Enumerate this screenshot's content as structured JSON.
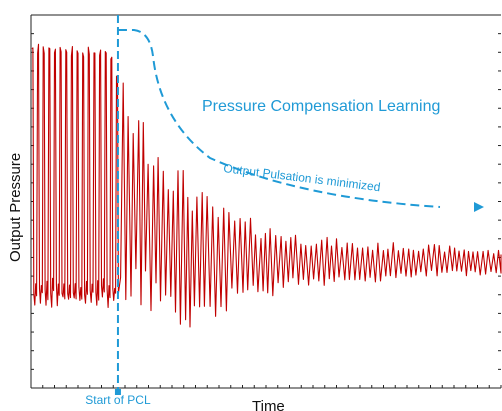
{
  "chart_data": {
    "type": "line",
    "title": "",
    "xlabel": "Time",
    "ylabel": "Output Pressure",
    "xlim": [
      0,
      100
    ],
    "ylim": [
      0,
      100
    ],
    "grid": false,
    "colors": {
      "signal": "#c00000",
      "annotation": "#1f9ad6",
      "axis": "#222222"
    },
    "pcl_start_x": 18.5,
    "series": [
      {
        "description_key": "output-pressure-signal",
        "envelope": [
          {
            "x": 0,
            "upper": 91,
            "lower": 23
          },
          {
            "x": 5,
            "upper": 91,
            "lower": 23
          },
          {
            "x": 10,
            "upper": 90,
            "lower": 23
          },
          {
            "x": 14,
            "upper": 90,
            "lower": 23
          },
          {
            "x": 17,
            "upper": 89,
            "lower": 23
          },
          {
            "x": 18.5,
            "upper": 83,
            "lower": 22
          },
          {
            "x": 21,
            "upper": 78,
            "lower": 22
          },
          {
            "x": 24,
            "upper": 72,
            "lower": 20
          },
          {
            "x": 27,
            "upper": 67,
            "lower": 16
          },
          {
            "x": 30,
            "upper": 62,
            "lower": 14
          },
          {
            "x": 33,
            "upper": 57,
            "lower": 15
          },
          {
            "x": 36,
            "upper": 53,
            "lower": 17
          },
          {
            "x": 40,
            "upper": 49,
            "lower": 20
          },
          {
            "x": 45,
            "upper": 46,
            "lower": 23
          },
          {
            "x": 50,
            "upper": 44,
            "lower": 24
          },
          {
            "x": 55,
            "upper": 42,
            "lower": 26
          },
          {
            "x": 60,
            "upper": 41,
            "lower": 27
          },
          {
            "x": 65,
            "upper": 40,
            "lower": 28
          },
          {
            "x": 70,
            "upper": 39,
            "lower": 28
          },
          {
            "x": 80,
            "upper": 39,
            "lower": 29
          },
          {
            "x": 90,
            "upper": 38,
            "lower": 30
          },
          {
            "x": 100,
            "upper": 37,
            "lower": 30
          }
        ]
      }
    ],
    "annotations": {
      "big": "Pressure Compensation Learning",
      "small": "Output Pulsation is minimized",
      "start_label": "Start of PCL"
    }
  }
}
